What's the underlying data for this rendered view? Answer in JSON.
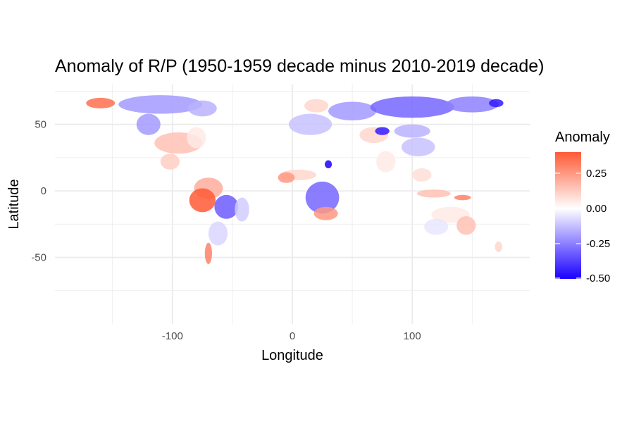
{
  "title": "Anomaly of R/P (1950-1959 decade minus 2010-2019 decade)",
  "map": {
    "x_axis_title": "Longitude",
    "y_axis_title": "Latitude",
    "x_ticks": [
      {
        "value": -100,
        "label": "-100"
      },
      {
        "value": 0,
        "label": "0"
      },
      {
        "value": 100,
        "label": "100"
      }
    ],
    "y_ticks": [
      {
        "value": 50,
        "label": "50"
      },
      {
        "value": 0,
        "label": "0"
      },
      {
        "value": -50,
        "label": "-50"
      }
    ],
    "x_range": [
      -198,
      198
    ],
    "y_range": [
      -100,
      80
    ],
    "colors": {
      "high": "#ff5a36",
      "mid": "#ffffff",
      "low": "#1a00ff",
      "grid": "#ebebeb"
    }
  },
  "legend": {
    "title": "Anomaly",
    "range": [
      -0.5,
      0.4
    ],
    "labels": [
      {
        "value": 0.25,
        "label": "0.25"
      },
      {
        "value": 0.0,
        "label": "0.00"
      },
      {
        "value": -0.25,
        "label": "-0.25"
      },
      {
        "value": -0.5,
        "label": "-0.50"
      }
    ]
  },
  "regions": [
    {
      "name": "alaska",
      "lon": -160,
      "lat": 66,
      "rx": 12,
      "ry": 4,
      "anomaly": 0.35
    },
    {
      "name": "northern-canada",
      "lon": -110,
      "lat": 65,
      "rx": 35,
      "ry": 7,
      "anomaly": -0.2
    },
    {
      "name": "hudson-area",
      "lon": -75,
      "lat": 62,
      "rx": 12,
      "ry": 6,
      "anomaly": -0.15
    },
    {
      "name": "western-north-america",
      "lon": -120,
      "lat": 50,
      "rx": 10,
      "ry": 8,
      "anomaly": -0.2
    },
    {
      "name": "central-usa",
      "lon": -95,
      "lat": 36,
      "rx": 20,
      "ry": 8,
      "anomaly": 0.15
    },
    {
      "name": "eastern-usa",
      "lon": -80,
      "lat": 40,
      "rx": 8,
      "ry": 8,
      "anomaly": 0.05
    },
    {
      "name": "mexico",
      "lon": -102,
      "lat": 22,
      "rx": 8,
      "ry": 6,
      "anomaly": 0.12
    },
    {
      "name": "northern-south-america",
      "lon": -70,
      "lat": 2,
      "rx": 12,
      "ry": 8,
      "anomaly": 0.2
    },
    {
      "name": "western-amazon",
      "lon": -75,
      "lat": -7,
      "rx": 11,
      "ry": 9,
      "anomaly": 0.4
    },
    {
      "name": "central-amazon",
      "lon": -55,
      "lat": -12,
      "rx": 10,
      "ry": 9,
      "anomaly": -0.32
    },
    {
      "name": "eastern-brazil",
      "lon": -42,
      "lat": -14,
      "rx": 6,
      "ry": 9,
      "anomaly": -0.1
    },
    {
      "name": "argentina",
      "lon": -62,
      "lat": -32,
      "rx": 8,
      "ry": 9,
      "anomaly": -0.08
    },
    {
      "name": "patagonia",
      "lon": -70,
      "lat": -47,
      "rx": 3,
      "ry": 8,
      "anomaly": 0.3
    },
    {
      "name": "europe",
      "lon": 15,
      "lat": 50,
      "rx": 18,
      "ry": 8,
      "anomaly": -0.12
    },
    {
      "name": "scandinavia",
      "lon": 20,
      "lat": 64,
      "rx": 10,
      "ry": 5,
      "anomaly": 0.1
    },
    {
      "name": "sahel",
      "lon": 5,
      "lat": 12,
      "rx": 15,
      "ry": 4,
      "anomaly": 0.1
    },
    {
      "name": "west-africa",
      "lon": -5,
      "lat": 10,
      "rx": 7,
      "ry": 4,
      "anomaly": 0.25
    },
    {
      "name": "east-africa-lake",
      "lon": 30,
      "lat": 20,
      "rx": 3,
      "ry": 3,
      "anomaly": -0.5
    },
    {
      "name": "central-africa",
      "lon": 25,
      "lat": -5,
      "rx": 14,
      "ry": 12,
      "anomaly": -0.3
    },
    {
      "name": "southern-africa",
      "lon": 28,
      "lat": -17,
      "rx": 10,
      "ry": 5,
      "anomaly": 0.25
    },
    {
      "name": "russia-west",
      "lon": 50,
      "lat": 60,
      "rx": 20,
      "ry": 7,
      "anomaly": -0.2
    },
    {
      "name": "siberia",
      "lon": 100,
      "lat": 63,
      "rx": 35,
      "ry": 8,
      "anomaly": -0.3
    },
    {
      "name": "east-siberia",
      "lon": 150,
      "lat": 65,
      "rx": 22,
      "ry": 6,
      "anomaly": -0.25
    },
    {
      "name": "chukotka",
      "lon": 170,
      "lat": 66,
      "rx": 6,
      "ry": 3,
      "anomaly": -0.45
    },
    {
      "name": "central-asia",
      "lon": 68,
      "lat": 42,
      "rx": 12,
      "ry": 6,
      "anomaly": 0.1
    },
    {
      "name": "central-asia-blue",
      "lon": 75,
      "lat": 45,
      "rx": 6,
      "ry": 3,
      "anomaly": -0.45
    },
    {
      "name": "mongolia",
      "lon": 100,
      "lat": 45,
      "rx": 15,
      "ry": 5,
      "anomaly": -0.15
    },
    {
      "name": "china",
      "lon": 105,
      "lat": 33,
      "rx": 14,
      "ry": 7,
      "anomaly": -0.12
    },
    {
      "name": "india",
      "lon": 78,
      "lat": 22,
      "rx": 8,
      "ry": 8,
      "anomaly": 0.05
    },
    {
      "name": "southeast-asia",
      "lon": 108,
      "lat": 12,
      "rx": 8,
      "ry": 5,
      "anomaly": 0.08
    },
    {
      "name": "indonesia",
      "lon": 118,
      "lat": -2,
      "rx": 14,
      "ry": 3,
      "anomaly": 0.15
    },
    {
      "name": "new-guinea",
      "lon": 142,
      "lat": -5,
      "rx": 7,
      "ry": 2,
      "anomaly": 0.3
    },
    {
      "name": "australia-north",
      "lon": 132,
      "lat": -18,
      "rx": 16,
      "ry": 6,
      "anomaly": 0.05
    },
    {
      "name": "australia-east",
      "lon": 145,
      "lat": -26,
      "rx": 8,
      "ry": 7,
      "anomaly": 0.15
    },
    {
      "name": "australia-west",
      "lon": 120,
      "lat": -27,
      "rx": 10,
      "ry": 6,
      "anomaly": -0.05
    },
    {
      "name": "new-zealand",
      "lon": 172,
      "lat": -42,
      "rx": 3,
      "ry": 4,
      "anomaly": 0.1
    }
  ]
}
